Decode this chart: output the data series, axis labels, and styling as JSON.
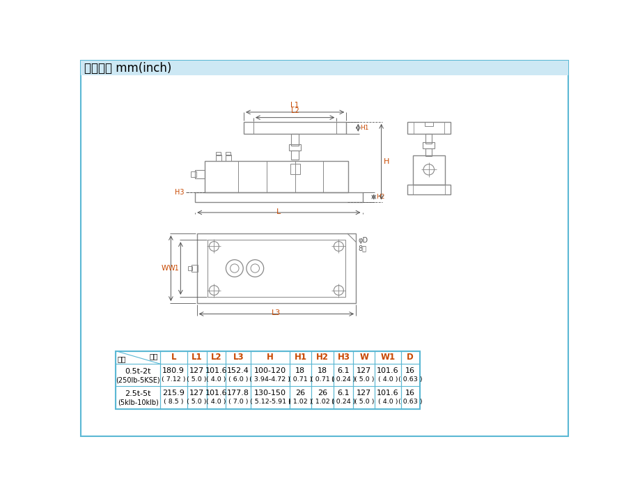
{
  "title": "外型尺寸 mm(inch)",
  "bg_color": "#ffffff",
  "border_color": "#5bb8d4",
  "title_bg_color": "#cde8f4",
  "line_color": "#888888",
  "dim_color": "#555555",
  "label_color": "#c84800",
  "table": {
    "col_headers": [
      "L",
      "L1",
      "L2",
      "L3",
      "H",
      "H1",
      "H2",
      "H3",
      "W",
      "W1",
      "D"
    ],
    "row1_name": "0.5t-2t",
    "row1_sub": "(250lb-5KSE)",
    "row1_vals": [
      "180.9",
      "127",
      "101.6",
      "152.4",
      "100-120",
      "18",
      "18",
      "6.1",
      "127",
      "101.6",
      "16"
    ],
    "row1_inch": [
      "( 7.12 )",
      "( 5.0 )",
      "( 4.0 )",
      "( 6.0 )",
      "( 3.94-4.72 )",
      "( 0.71 )",
      "( 0.71 )",
      "( 0.24 )",
      "( 5.0 )",
      "( 4.0 )",
      "( 0.63 )"
    ],
    "row2_name": "2.5t-5t",
    "row2_sub": "(5klb-10klb)",
    "row2_vals": [
      "215.9",
      "127",
      "101.6",
      "177.8",
      "130-150",
      "26",
      "26",
      "6.1",
      "127",
      "101.6",
      "16"
    ],
    "row2_inch": [
      "( 8.5 )",
      "( 5.0 )",
      "( 4.0 )",
      "( 7.0 )",
      "( 5.12-5.91 )",
      "( 1.02 )",
      "( 1.02 )",
      "( 0.24 )",
      "( 5.0 )",
      "( 4.0 )",
      "( 0.63 )"
    ]
  }
}
